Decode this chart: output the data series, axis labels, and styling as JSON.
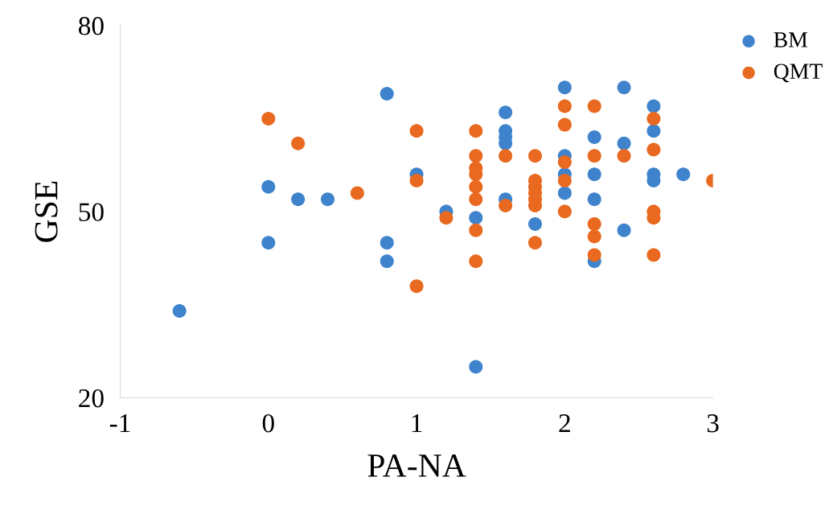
{
  "chart_data": {
    "type": "scatter",
    "xlabel": "PA-NA",
    "ylabel": "GSE",
    "xlim": [
      -1,
      3
    ],
    "xticks": [
      -1,
      0,
      1,
      2,
      3
    ],
    "ylim": [
      20,
      80
    ],
    "yticks": [
      20,
      50,
      80
    ],
    "grid": false,
    "legend": "top right",
    "marker": "circle",
    "series": [
      {
        "name": "BM",
        "color": "#3f83cc",
        "x": [
          -0.6,
          0,
          0,
          0.2,
          0.4,
          0.8,
          0.8,
          0.8,
          1.0,
          1.2,
          1.4,
          1.4,
          1.6,
          1.6,
          1.6,
          1.6,
          1.6,
          1.8,
          2.0,
          2.0,
          2.0,
          2.0,
          2.2,
          2.2,
          2.2,
          2.2,
          2.4,
          2.4,
          2.4,
          2.6,
          2.6,
          2.6,
          2.6,
          2.8
        ],
        "values": [
          34,
          54,
          45,
          52,
          52,
          69,
          45,
          42,
          56,
          50,
          49,
          25,
          66,
          63,
          62,
          61,
          52,
          48,
          70,
          59,
          56,
          53,
          62,
          56,
          52,
          42,
          70,
          61,
          47,
          67,
          63,
          56,
          55,
          56
        ]
      },
      {
        "name": "QMT",
        "color": "#e8691f",
        "x": [
          0,
          0.2,
          0.6,
          1.0,
          1.0,
          1.0,
          1.2,
          1.4,
          1.4,
          1.4,
          1.4,
          1.4,
          1.4,
          1.4,
          1.4,
          1.6,
          1.6,
          1.8,
          1.8,
          1.8,
          1.8,
          1.8,
          1.8,
          1.8,
          2.0,
          2.0,
          2.0,
          2.0,
          2.0,
          2.2,
          2.2,
          2.2,
          2.2,
          2.2,
          2.4,
          2.6,
          2.6,
          2.6,
          2.6,
          2.6,
          3.0
        ],
        "values": [
          65,
          61,
          53,
          63,
          55,
          38,
          49,
          63,
          59,
          57,
          56,
          54,
          52,
          47,
          42,
          59,
          51,
          59,
          55,
          54,
          53,
          52,
          51,
          45,
          67,
          64,
          58,
          55,
          50,
          67,
          59,
          48,
          46,
          43,
          59,
          65,
          60,
          50,
          49,
          43,
          55
        ]
      }
    ]
  }
}
